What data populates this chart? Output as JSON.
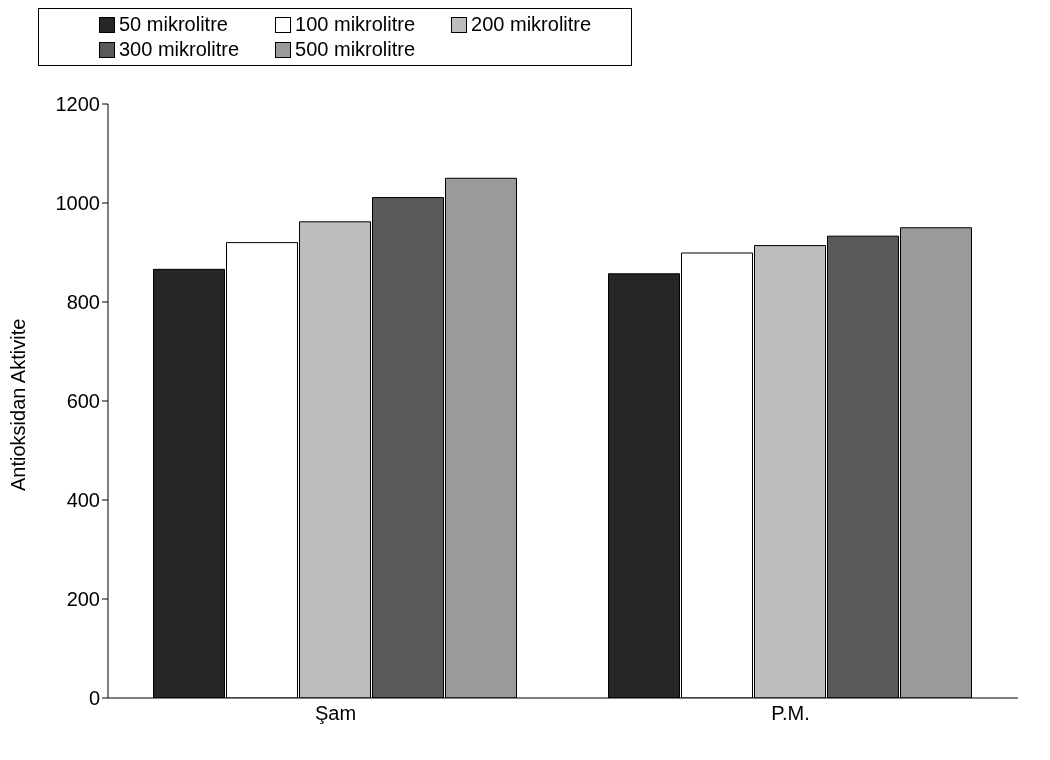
{
  "chart_data": {
    "type": "bar",
    "ylabel": "Antioksidan Aktivite",
    "categories": [
      "Şam",
      "P.M."
    ],
    "series": [
      {
        "name": "50 mikrolitre",
        "color": "#262626",
        "values": [
          866,
          857
        ]
      },
      {
        "name": "100 mikrolitre",
        "color": "#ffffff",
        "values": [
          920,
          899
        ]
      },
      {
        "name": "200 mikrolitre",
        "color": "#bdbdbd",
        "values": [
          962,
          914
        ]
      },
      {
        "name": "300 mikrolitre",
        "color": "#595959",
        "values": [
          1011,
          933
        ]
      },
      {
        "name": "500 mikrolitre",
        "color": "#9a9a9a",
        "values": [
          1050,
          950
        ]
      }
    ],
    "ylim": [
      0,
      1200
    ],
    "yticks": [
      0,
      200,
      400,
      600,
      800,
      1000,
      1200
    ],
    "legend": "top"
  }
}
